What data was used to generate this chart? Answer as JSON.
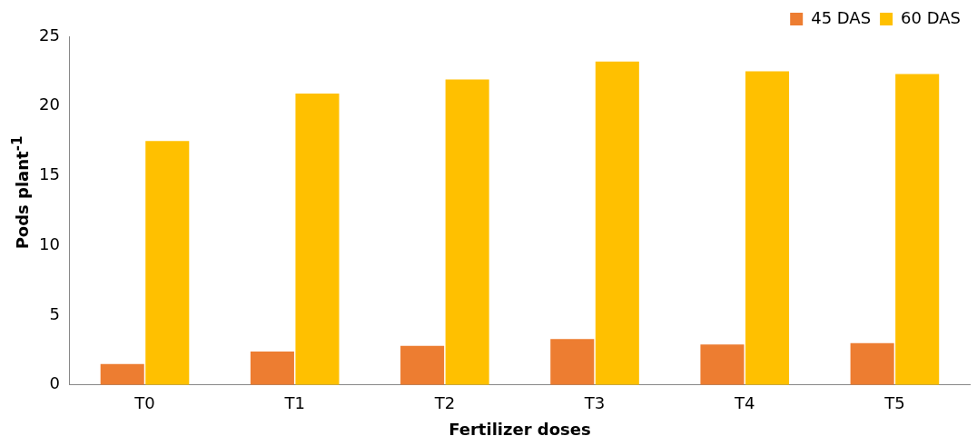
{
  "chart_data": {
    "type": "bar",
    "xlabel": "Fertilizer doses",
    "ylabel": "Pods plant$^{-1}$",
    "categories": [
      "T0",
      "T1",
      "T2",
      "T3",
      "T4",
      "T5"
    ],
    "series": [
      {
        "name": "45 DAS",
        "color": "#ed7d31",
        "values": [
          1.5,
          2.4,
          2.8,
          3.3,
          2.9,
          3.0
        ]
      },
      {
        "name": "60 DAS",
        "color": "#ffc000",
        "values": [
          17.5,
          20.9,
          21.9,
          23.2,
          22.5,
          22.3
        ]
      }
    ],
    "ylim": [
      0,
      25
    ],
    "yticks": [
      0,
      5,
      10,
      15,
      20,
      25
    ],
    "grid": false,
    "legend": "top right"
  }
}
